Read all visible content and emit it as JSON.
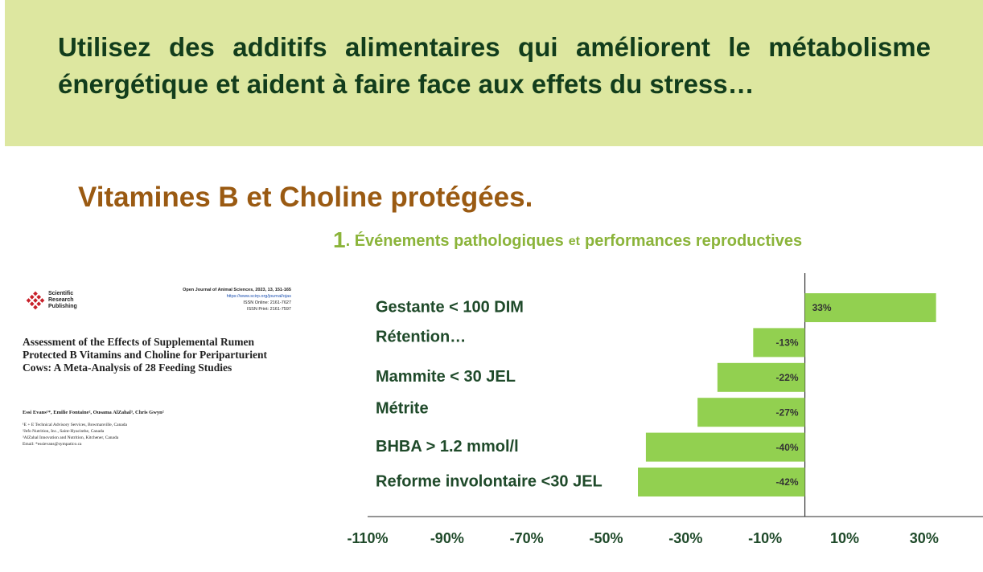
{
  "header": {
    "title": "Utilisez des additifs alimentaires qui améliorent le métabolisme énergétique et aident à faire face aux effets du stress…"
  },
  "subtitle": "Vitamines B et Choline protégées.",
  "paper": {
    "publisher": "Scientific Research Publishing",
    "journal": "Open Journal of Animal Sciences, 2023, 13, 151-165",
    "url": "https://www.scirp.org/journal/ojas",
    "issn_online": "ISSN Online: 2161-7627",
    "issn_print": "ISSN Print: 2161-7597",
    "title": "Assessment of the Effects of Supplemental Rumen Protected B Vitamins and Choline for Periparturient Cows: A Meta-Analysis of 28 Feeding Studies",
    "authors": "Essi Evans¹*, Emilie Fontaine², Ousama AlZahal³, Chris Gwyn²",
    "affiliations": [
      "¹E + E Technical Advisory Services, Bowmanville, Canada",
      "²Jefo Nutrition, Inc., Saint-Hyacinthe, Canada",
      "³AlZahal Innovation and Nutrition, Kitchener, Canada",
      "Email: *essievans@sympatico.ca"
    ]
  },
  "chart_data": {
    "type": "bar",
    "orientation": "horizontal",
    "title_parts": [
      "1",
      ". Événements pathologiques",
      "et",
      "performances reproductives"
    ],
    "categories": [
      "Gestante < 100 DIM",
      "Rétention…",
      "Mammite < 30 JEL",
      "Métrite",
      "BHBA > 1.2 mmol/l",
      "Reforme involontaire <30 JEL"
    ],
    "values": [
      33,
      -13,
      -22,
      -27,
      -40,
      -42
    ],
    "value_labels": [
      "33%",
      "-13%",
      "-22%",
      "-27%",
      "-40%",
      "-42%"
    ],
    "color": "#92d050",
    "xlim": [
      -110,
      44
    ],
    "xticks": [
      {
        "value": -110,
        "label": "-110%"
      },
      {
        "value": -90,
        "label": "-90%"
      },
      {
        "value": -70,
        "label": "-70%"
      },
      {
        "value": -50,
        "label": "-50%"
      },
      {
        "value": -30,
        "label": "-30%"
      },
      {
        "value": -10,
        "label": "-10%"
      },
      {
        "value": 10,
        "label": "10%"
      },
      {
        "value": 30,
        "label": "30%"
      }
    ],
    "grid": false
  }
}
